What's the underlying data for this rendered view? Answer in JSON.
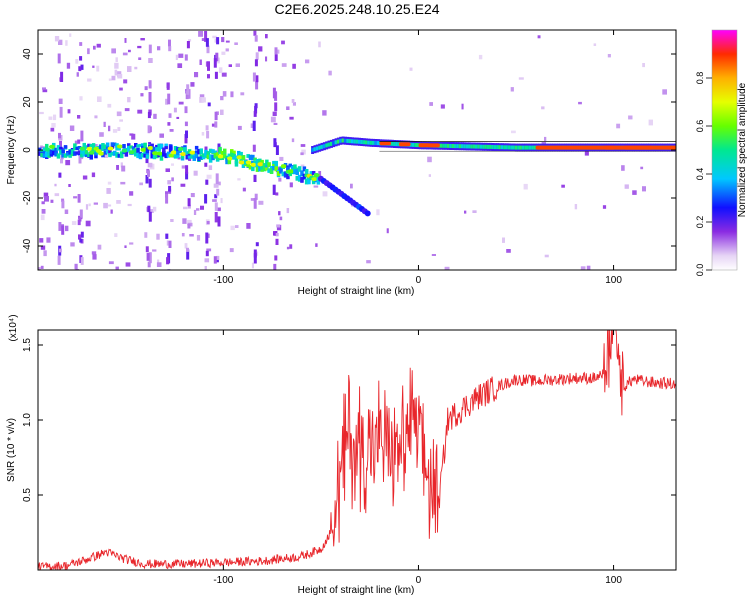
{
  "title": "C2E6.2025.248.10.25.E24",
  "chart_data": [
    {
      "type": "heatmap",
      "xlabel": "Height of straight line (km)",
      "ylabel": "Frequency (Hz)",
      "xlim": [
        -195,
        132
      ],
      "ylim": [
        -50,
        50
      ],
      "xticks": [
        -100,
        0,
        100
      ],
      "yticks": [
        -40,
        -20,
        0,
        20,
        40
      ],
      "colorbar": {
        "label": "Normalized spectral amplitude",
        "range": [
          0,
          1
        ],
        "ticks": [
          "0.0",
          "0.2",
          "0.4",
          "0.6",
          "0.8"
        ]
      },
      "features": [
        {
          "name": "main-trace",
          "points": [
            [
              -195,
              0
            ],
            [
              -150,
              0
            ],
            [
              -120,
              -1
            ],
            [
              -100,
              -2
            ],
            [
              -80,
              -6
            ],
            [
              -60,
              -10
            ],
            [
              -52,
              -12
            ]
          ]
        },
        {
          "name": "upper-branch",
          "points": [
            [
              -55,
              0
            ],
            [
              -40,
              4
            ],
            [
              -25,
              3
            ],
            [
              0,
              2
            ],
            [
              50,
              1
            ],
            [
              132,
              1
            ]
          ]
        },
        {
          "name": "lower-branch",
          "points": [
            [
              -50,
              -12
            ],
            [
              -40,
              -18
            ],
            [
              -30,
              -24
            ],
            [
              -25,
              -27
            ]
          ]
        },
        {
          "name": "strong-segments-x",
          "values": [
            -20,
            -10,
            0,
            5,
            60,
            95,
            105
          ]
        }
      ]
    },
    {
      "type": "line",
      "xlabel": "Height of straight line (km)",
      "ylabel": "SNR (10 * v/v)",
      "ylabel_exponent": "(x10⁴)",
      "xlim": [
        -195,
        132
      ],
      "ylim": [
        0,
        1.6
      ],
      "xticks": [
        -100,
        0,
        100
      ],
      "yticks": [
        "0.5",
        "1.0",
        "1.5"
      ],
      "series": [
        {
          "name": "SNR",
          "color": "#e8262b",
          "x": [
            -195,
            -180,
            -170,
            -160,
            -150,
            -140,
            -120,
            -100,
            -80,
            -60,
            -50,
            -45,
            -40,
            -36,
            -32,
            -28,
            -24,
            -20,
            -15,
            -10,
            -5,
            0,
            5,
            10,
            15,
            20,
            30,
            40,
            50,
            60,
            70,
            80,
            90,
            95,
            100,
            105,
            110,
            120,
            132
          ],
          "y": [
            0.02,
            0.03,
            0.07,
            0.12,
            0.07,
            0.04,
            0.04,
            0.05,
            0.06,
            0.09,
            0.14,
            0.25,
            0.6,
            0.9,
            0.8,
            0.85,
            0.75,
            0.9,
            0.8,
            0.8,
            0.95,
            0.95,
            0.6,
            0.4,
            1.0,
            1.05,
            1.15,
            1.22,
            1.27,
            1.26,
            1.27,
            1.28,
            1.28,
            1.3,
            1.55,
            1.22,
            1.27,
            1.25,
            1.24
          ]
        }
      ]
    }
  ]
}
